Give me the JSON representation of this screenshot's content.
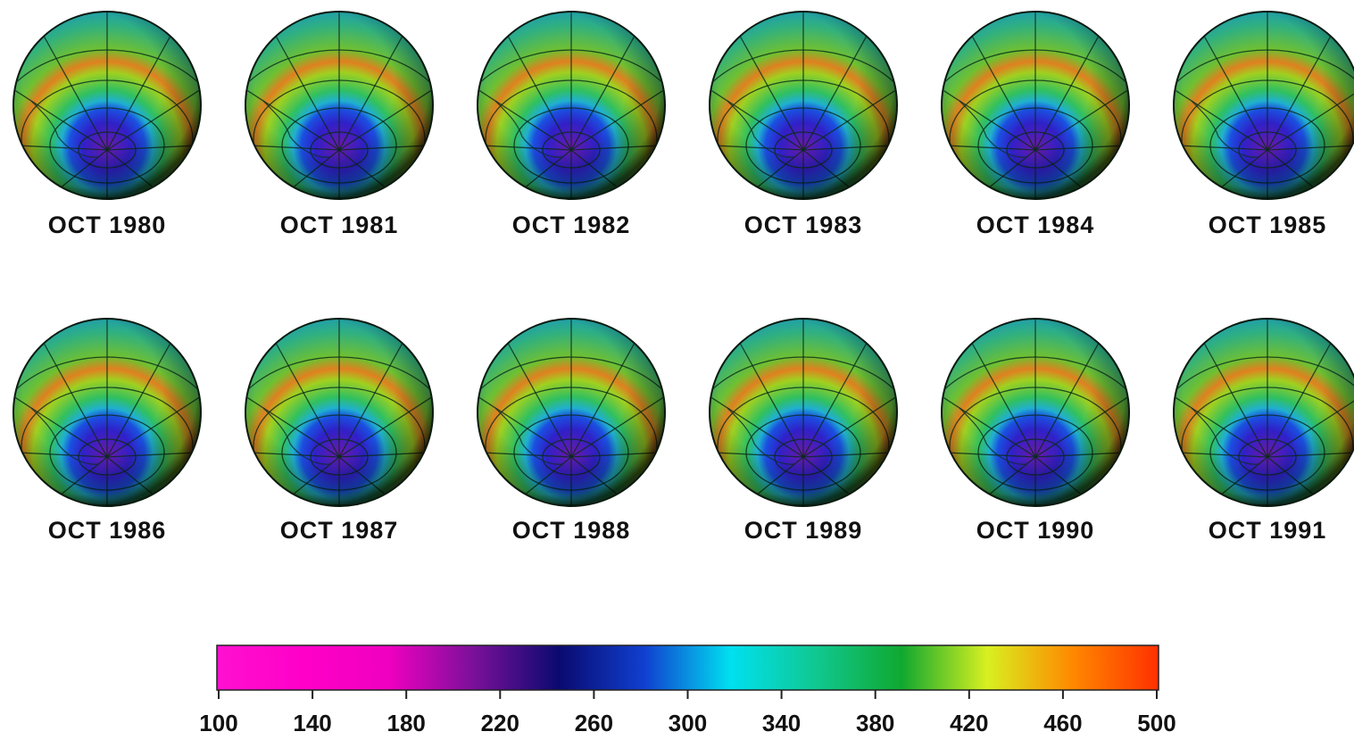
{
  "panels": [
    {
      "label": "OCT 1980"
    },
    {
      "label": "OCT 1981"
    },
    {
      "label": "OCT 1982"
    },
    {
      "label": "OCT 1983"
    },
    {
      "label": "OCT 1984"
    },
    {
      "label": "OCT 1985"
    },
    {
      "label": "OCT 1986"
    },
    {
      "label": "OCT 1987"
    },
    {
      "label": "OCT 1988"
    },
    {
      "label": "OCT 1989"
    },
    {
      "label": "OCT 1990"
    },
    {
      "label": "OCT 1991"
    }
  ],
  "colorbar": {
    "lim": [
      100,
      500
    ],
    "ticks": [
      100,
      140,
      180,
      220,
      260,
      300,
      340,
      380,
      420,
      460,
      500
    ],
    "colors": [
      "#ff10d0",
      "#ff00c8",
      "#f000c0",
      "#7a109a",
      "#0a0a70",
      "#1040d0",
      "#00e0f0",
      "#10c890",
      "#10a830",
      "#d8f020",
      "#ff8800",
      "#ff3000"
    ]
  }
}
